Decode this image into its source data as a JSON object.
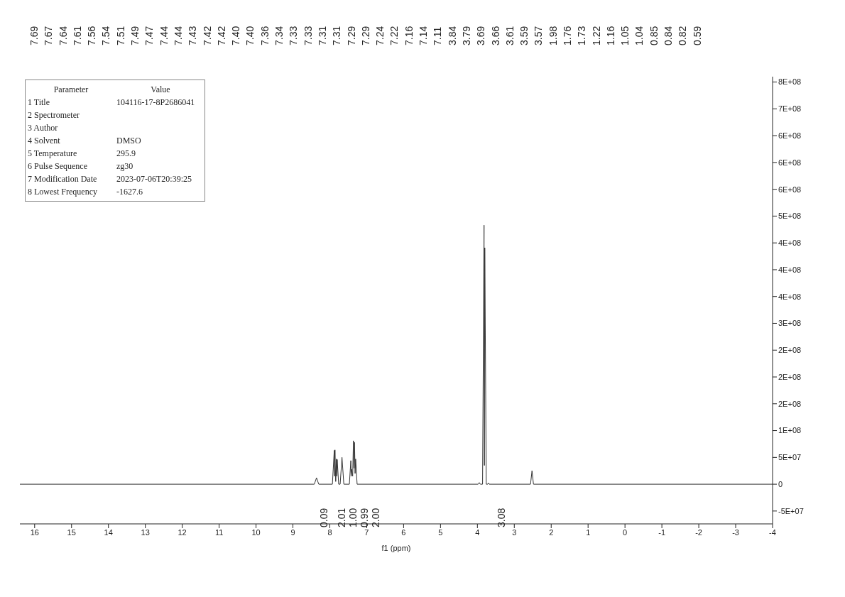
{
  "chart_data": {
    "type": "line",
    "xlabel": "f1 (ppm)",
    "x": [
      16.4,
      8.42,
      8.36,
      8.3,
      7.93,
      7.88,
      7.87,
      7.86,
      7.84,
      7.82,
      7.81,
      7.8,
      7.76,
      7.72,
      7.67,
      7.62,
      7.47,
      7.43,
      7.42,
      7.41,
      7.38,
      7.36,
      7.345,
      7.33,
      7.315,
      7.3,
      7.26,
      3.98,
      3.95,
      3.92,
      3.86,
      3.82,
      3.81,
      3.8,
      3.76,
      3.72,
      3.7,
      3.68,
      2.56,
      2.52,
      2.48,
      -4
    ],
    "series": [
      {
        "color": "#333333",
        "values": [
          0,
          0,
          12000000,
          0,
          0,
          63000000,
          15000000,
          64000000,
          5000000,
          47000000,
          15000000,
          46000000,
          0,
          0,
          50000000,
          0,
          0,
          44000000,
          15000000,
          28000000,
          15000000,
          81000000,
          30000000,
          78000000,
          20000000,
          47000000,
          0,
          0,
          3000000,
          0,
          0,
          483000000,
          35000000,
          441000000,
          0,
          0,
          2000000,
          0,
          0,
          25000000,
          0,
          0
        ]
      }
    ],
    "xlim": [
      16.4,
      -4
    ],
    "xticks": [
      16,
      15,
      14,
      13,
      12,
      11,
      10,
      9,
      8,
      7,
      6,
      5,
      4,
      3,
      2,
      1,
      0,
      -1,
      -2,
      -3,
      -4
    ],
    "ylim": [
      -74000000,
      760000000
    ],
    "yticks": [
      {
        "value": -50000000,
        "label": "-5E+07"
      },
      {
        "value": 0,
        "label": "0"
      },
      {
        "value": 50000000,
        "label": "5E+07"
      },
      {
        "value": 100000000,
        "label": "1E+08"
      },
      {
        "value": 150000000,
        "label": "2E+08"
      },
      {
        "value": 200000000,
        "label": "2E+08"
      },
      {
        "value": 250000000,
        "label": "2E+08"
      },
      {
        "value": 300000000,
        "label": "3E+08"
      },
      {
        "value": 350000000,
        "label": "4E+08"
      },
      {
        "value": 400000000,
        "label": "4E+08"
      },
      {
        "value": 450000000,
        "label": "4E+08"
      },
      {
        "value": 500000000,
        "label": "5E+08"
      },
      {
        "value": 550000000,
        "label": "6E+08"
      },
      {
        "value": 600000000,
        "label": "6E+08"
      },
      {
        "value": 650000000,
        "label": "6E+08"
      },
      {
        "value": 700000000,
        "label": "7E+08"
      },
      {
        "value": 750000000,
        "label": "8E+08"
      }
    ],
    "marker": "none",
    "grid": false,
    "legend": false,
    "annotations": [
      "Parameter",
      "Value",
      "1 Title",
      "104116-17-8P2686041",
      "2 Spectrometer",
      "3 Author",
      "4 Solvent",
      "DMSO",
      "5 Temperature",
      "295.9",
      "6 Pulse Sequence",
      "zg30",
      "7 Modification Date",
      "2023-07-06T20:39:25",
      "8 Lowest Frequency",
      "-1627.6",
      "7.69",
      "7.67",
      "7.64",
      "7.61",
      "7.56",
      "7.54",
      "7.51",
      "7.49",
      "7.47",
      "7.44",
      "7.44",
      "7.43",
      "7.42",
      "7.42",
      "7.40",
      "7.40",
      "7.36",
      "7.34",
      "7.33",
      "7.33",
      "7.31",
      "7.31",
      "7.29",
      "7.29",
      "7.24",
      "7.22",
      "7.16",
      "7.14",
      "7.11",
      "3.84",
      "3.79",
      "3.69",
      "3.66",
      "3.61",
      "3.59",
      "3.57",
      "1.98",
      "1.76",
      "1.73",
      "1.22",
      "1.16",
      "1.05",
      "1.04",
      "0.85",
      "0.84",
      "0.82",
      "0.59",
      "0.09",
      "2.01",
      "1.00",
      "0.99",
      "2.00",
      "3.08"
    ]
  }
}
